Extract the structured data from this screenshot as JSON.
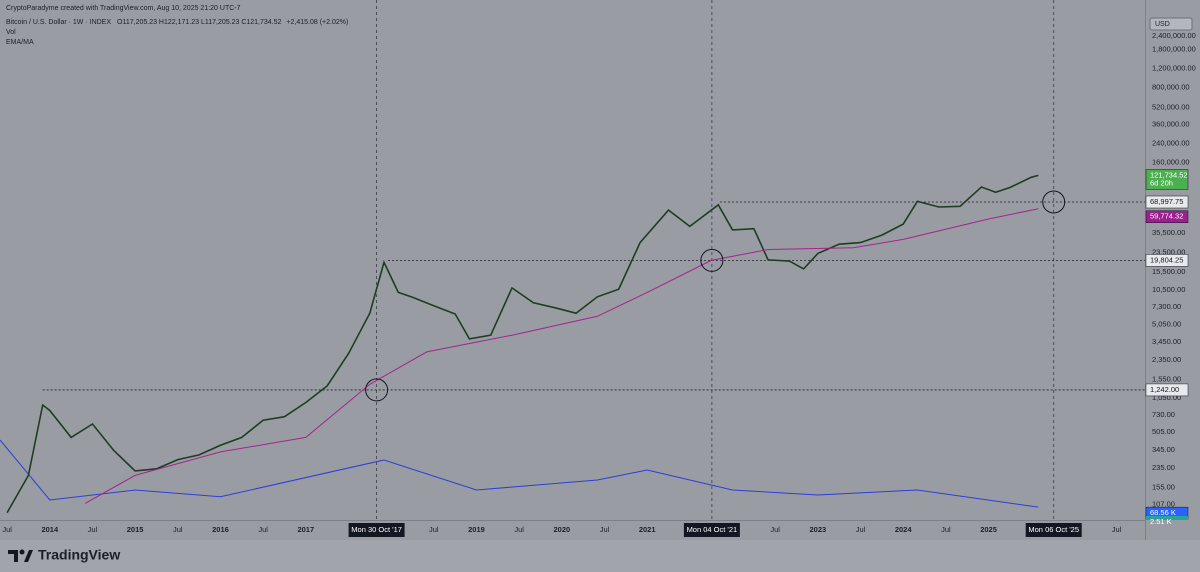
{
  "header": {
    "watermark": "CryptoParadyme created with TradingView.com, Aug 10, 2025 21:20 UTC-7",
    "symbol": "Bitcoin / U.S. Dollar · 1W · INDEX",
    "ohlc": "O117,205.23 H122,171.23 L117,205.23 C121,734.52",
    "change": "+2,415.08 (+2.02%)",
    "indicators": [
      "Vol",
      "EMA/MA"
    ]
  },
  "currency": "USD",
  "footer": "TradingView",
  "chart_data": {
    "type": "line",
    "log_scale": true,
    "xlim": [
      "2013-06",
      "2026-11"
    ],
    "ylim": [
      77,
      5180000
    ],
    "yticks": [
      {
        "value": 2400000,
        "label": "2,400,000.00"
      },
      {
        "value": 1800000,
        "label": "1,800,000.00"
      },
      {
        "value": 1200000,
        "label": "1,200,000.00"
      },
      {
        "value": 800000,
        "label": "800,000.00"
      },
      {
        "value": 520000,
        "label": "520,000.00"
      },
      {
        "value": 360000,
        "label": "360,000.00"
      },
      {
        "value": 240000,
        "label": "240,000.00"
      },
      {
        "value": 160000,
        "label": "160,000.00"
      },
      {
        "value": 35500,
        "label": "35,500.00"
      },
      {
        "value": 23500,
        "label": "23,500.00"
      },
      {
        "value": 15500,
        "label": "15,500.00"
      },
      {
        "value": 10500,
        "label": "10,500.00"
      },
      {
        "value": 7300,
        "label": "7,300.00"
      },
      {
        "value": 5050,
        "label": "5,050.00"
      },
      {
        "value": 3450,
        "label": "3,450.00"
      },
      {
        "value": 2350,
        "label": "2,350.00"
      },
      {
        "value": 1550,
        "label": "1,550.00"
      },
      {
        "value": 1050,
        "label": "1,050.00"
      },
      {
        "value": 730,
        "label": "730.00"
      },
      {
        "value": 505,
        "label": "505.00"
      },
      {
        "value": 345,
        "label": "345.00"
      },
      {
        "value": 235,
        "label": "235.00"
      },
      {
        "value": 155,
        "label": "155.00"
      },
      {
        "value": 107,
        "label": "107.00"
      }
    ],
    "xticks": [
      {
        "value": "2013-07",
        "label": "Jul"
      },
      {
        "value": "2014-01",
        "label": "2014"
      },
      {
        "value": "2014-07",
        "label": "Jul"
      },
      {
        "value": "2015-01",
        "label": "2015"
      },
      {
        "value": "2015-07",
        "label": "Jul"
      },
      {
        "value": "2016-01",
        "label": "2016"
      },
      {
        "value": "2016-07",
        "label": "Jul"
      },
      {
        "value": "2017-01",
        "label": "2017"
      },
      {
        "value": "2018-07",
        "label": "Jul"
      },
      {
        "value": "2019-01",
        "label": "2019"
      },
      {
        "value": "2019-07",
        "label": "Jul"
      },
      {
        "value": "2020-01",
        "label": "2020"
      },
      {
        "value": "2020-07",
        "label": "Jul"
      },
      {
        "value": "2021-01",
        "label": "2021"
      },
      {
        "value": "2022-07",
        "label": "Jul"
      },
      {
        "value": "2023-01",
        "label": "2023"
      },
      {
        "value": "2023-07",
        "label": "Jul"
      },
      {
        "value": "2024-01",
        "label": "2024"
      },
      {
        "value": "2024-07",
        "label": "Jul"
      },
      {
        "value": "2025-01",
        "label": "2025"
      },
      {
        "value": "2026-07",
        "label": "Jul"
      }
    ],
    "series": [
      {
        "color": "#1f3d22",
        "x": [
          "2013-07",
          "2013-10",
          "2013-12",
          "2014-01",
          "2014-04",
          "2014-07",
          "2014-10",
          "2015-01",
          "2015-04",
          "2015-07",
          "2015-10",
          "2016-01",
          "2016-04",
          "2016-07",
          "2016-10",
          "2017-01",
          "2017-04",
          "2017-07",
          "2017-10",
          "2017-12",
          "2018-02",
          "2018-04",
          "2018-07",
          "2018-10",
          "2018-12",
          "2019-03",
          "2019-06",
          "2019-09",
          "2019-12",
          "2020-03",
          "2020-06",
          "2020-09",
          "2020-12",
          "2021-04",
          "2021-07",
          "2021-11",
          "2022-01",
          "2022-04",
          "2022-06",
          "2022-09",
          "2022-11",
          "2023-01",
          "2023-04",
          "2023-07",
          "2023-10",
          "2024-01",
          "2024-03",
          "2024-06",
          "2024-09",
          "2024-12",
          "2025-02",
          "2025-04",
          "2025-07",
          "2025-08"
        ],
        "values": [
          90,
          200,
          900,
          800,
          450,
          600,
          340,
          220,
          230,
          280,
          310,
          380,
          450,
          650,
          700,
          950,
          1350,
          2700,
          6400,
          19000,
          10000,
          9000,
          7500,
          6300,
          3700,
          4000,
          11000,
          8000,
          7200,
          6400,
          9100,
          10700,
          29000,
          58000,
          41000,
          65000,
          38000,
          39000,
          20000,
          19500,
          16500,
          23000,
          28000,
          29000,
          34000,
          43000,
          70000,
          62000,
          63000,
          95000,
          85000,
          94000,
          117000,
          121734.52
        ]
      },
      {
        "color": "#a3238c",
        "x": [
          "2014-06",
          "2015-01",
          "2016-01",
          "2017-01",
          "2017-10",
          "2018-06",
          "2019-06",
          "2020-06",
          "2021-01",
          "2021-10",
          "2022-06",
          "2023-06",
          "2024-01",
          "2025-01",
          "2025-08"
        ],
        "values": [
          110,
          200,
          330,
          450,
          1400,
          2800,
          4000,
          6000,
          10000,
          19804.25,
          25000,
          26000,
          31000,
          48000,
          59774.32
        ]
      }
    ],
    "volume_ylim": [
      0,
      300
    ],
    "volume_ma": {
      "color": "#2b3ed6",
      "x": [
        "2013-06",
        "2014-01",
        "2015-01",
        "2016-01",
        "2017-12",
        "2019-01",
        "2020-06",
        "2021-01",
        "2022-01",
        "2023-01",
        "2024-03",
        "2025-08"
      ],
      "values": [
        270,
        90,
        120,
        100,
        210,
        120,
        150,
        180,
        120,
        105,
        120,
        68.56
      ]
    },
    "levels": [
      {
        "value": 1242,
        "label": "1,242.00",
        "from": "2013-12"
      },
      {
        "value": 19804.25,
        "label": "19,804.25",
        "from": "2017-12-18"
      },
      {
        "value": 68997.75,
        "label": "68,997.75",
        "from": "2021-11-08"
      }
    ],
    "crosshairs": [
      {
        "date": "2017-10-30",
        "label": "Mon 30 Oct '17"
      },
      {
        "date": "2021-10-04",
        "label": "Mon 04 Oct '21"
      },
      {
        "date": "2025-10-06",
        "label": "Mon 06 Oct '25"
      }
    ],
    "last_price": {
      "value": 121734.52,
      "label": "121,734.52",
      "countdown": "6d 20h"
    },
    "ema_badge": {
      "value": 59774.32,
      "label": "59,774.32"
    },
    "volume_badge": {
      "value": 68.56,
      "label": "68.56 K"
    },
    "volume_badge_2": {
      "label": "2.51 K"
    }
  }
}
